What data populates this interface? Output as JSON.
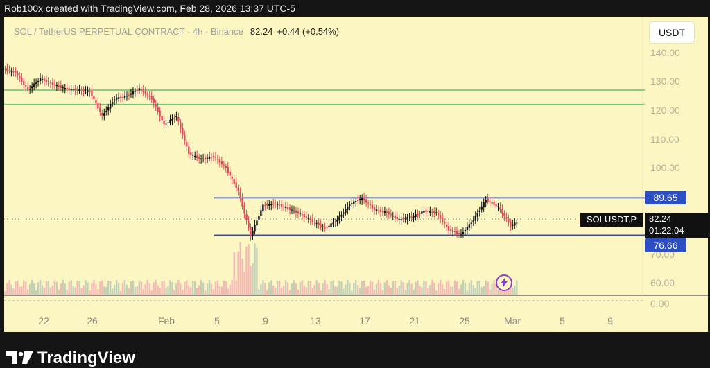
{
  "header": {
    "credit": "Rob100x created with TradingView.com, Feb 28, 2026 13:37 UTC-5"
  },
  "title_bar": {
    "symbol_desc": "SOL / TetherUS PERPETUAL CONTRACT · 4h · Binance",
    "last_price": "82.24",
    "change": "+0.44 (+0.54%)"
  },
  "currency_button": "USDT",
  "y_axis": {
    "ticks": [
      "140.00",
      "130.00",
      "120.00",
      "110.00",
      "100.00",
      "70.00",
      "60.00",
      "0.00"
    ]
  },
  "x_axis": {
    "ticks": [
      "22",
      "26",
      "Feb",
      "5",
      "9",
      "13",
      "17",
      "21",
      "25",
      "Mar",
      "5",
      "9"
    ]
  },
  "price_tags": {
    "upper": "89.65",
    "lower": "76.66",
    "symbol": "SOLUSDT.P",
    "last": "82.24",
    "countdown": "01:22:04"
  },
  "footer": {
    "brand": "TradingView"
  },
  "colors": {
    "chart_bg": "#fbf6c2",
    "up_candle": "#111111",
    "down_candle": "#e0485a",
    "range_line": "#2d4fc4",
    "support_line": "#79c97b",
    "tag_blue": "#2d4fc4",
    "alert_icon": "#8a3fc9"
  },
  "icons": {
    "alert": "lightning-alert-icon",
    "logo": "tradingview-logo-icon"
  },
  "chart_data": {
    "type": "candlestick",
    "symbol": "SOLUSDT.P",
    "interval": "4h",
    "exchange": "Binance",
    "price_path": [
      {
        "x": "Jan 18",
        "y": 134.5
      },
      {
        "x": "Jan 19",
        "y": 133.0
      },
      {
        "x": "Jan 20",
        "y": 127.0
      },
      {
        "x": "Jan 21",
        "y": 131.0
      },
      {
        "x": "Jan 22",
        "y": 129.0
      },
      {
        "x": "Jan 23",
        "y": 127.5
      },
      {
        "x": "Jan 24",
        "y": 127.0
      },
      {
        "x": "Jan 25",
        "y": 126.5
      },
      {
        "x": "Jan 26",
        "y": 118.0
      },
      {
        "x": "Jan 27",
        "y": 124.0
      },
      {
        "x": "Jan 28",
        "y": 125.0
      },
      {
        "x": "Jan 29",
        "y": 127.5
      },
      {
        "x": "Jan 30",
        "y": 124.0
      },
      {
        "x": "Jan 31",
        "y": 115.0
      },
      {
        "x": "Feb 1",
        "y": 118.0
      },
      {
        "x": "Feb 2",
        "y": 105.0
      },
      {
        "x": "Feb 3",
        "y": 103.0
      },
      {
        "x": "Feb 4",
        "y": 104.0
      },
      {
        "x": "Feb 5",
        "y": 100.0
      },
      {
        "x": "Feb 6",
        "y": 92.0
      },
      {
        "x": "Feb 7",
        "y": 76.5
      },
      {
        "x": "Feb 8",
        "y": 87.0
      },
      {
        "x": "Feb 9",
        "y": 87.5
      },
      {
        "x": "Feb 10",
        "y": 86.0
      },
      {
        "x": "Feb 11",
        "y": 84.0
      },
      {
        "x": "Feb 12",
        "y": 81.5
      },
      {
        "x": "Feb 13",
        "y": 79.0
      },
      {
        "x": "Feb 14",
        "y": 82.0
      },
      {
        "x": "Feb 15",
        "y": 87.5
      },
      {
        "x": "Feb 16",
        "y": 89.5
      },
      {
        "x": "Feb 17",
        "y": 85.5
      },
      {
        "x": "Feb 18",
        "y": 84.5
      },
      {
        "x": "Feb 19",
        "y": 82.0
      },
      {
        "x": "Feb 20",
        "y": 83.0
      },
      {
        "x": "Feb 21",
        "y": 85.0
      },
      {
        "x": "Feb 22",
        "y": 84.5
      },
      {
        "x": "Feb 23",
        "y": 78.5
      },
      {
        "x": "Feb 24",
        "y": 77.0
      },
      {
        "x": "Feb 25",
        "y": 82.0
      },
      {
        "x": "Feb 26",
        "y": 89.0
      },
      {
        "x": "Feb 27",
        "y": 86.5
      },
      {
        "x": "Feb 28",
        "y": 80.0
      },
      {
        "x": "Feb 28 13:37",
        "y": 82.24
      }
    ],
    "horizontal_lines": [
      {
        "y": 127.0,
        "color": "green"
      },
      {
        "y": 122.0,
        "color": "green"
      },
      {
        "y": 89.65,
        "color": "blue"
      },
      {
        "y": 76.66,
        "color": "blue"
      },
      {
        "y": 82.24,
        "style": "dotted"
      }
    ],
    "ylim": [
      0,
      145
    ],
    "grid": false,
    "volume_pane": true
  }
}
